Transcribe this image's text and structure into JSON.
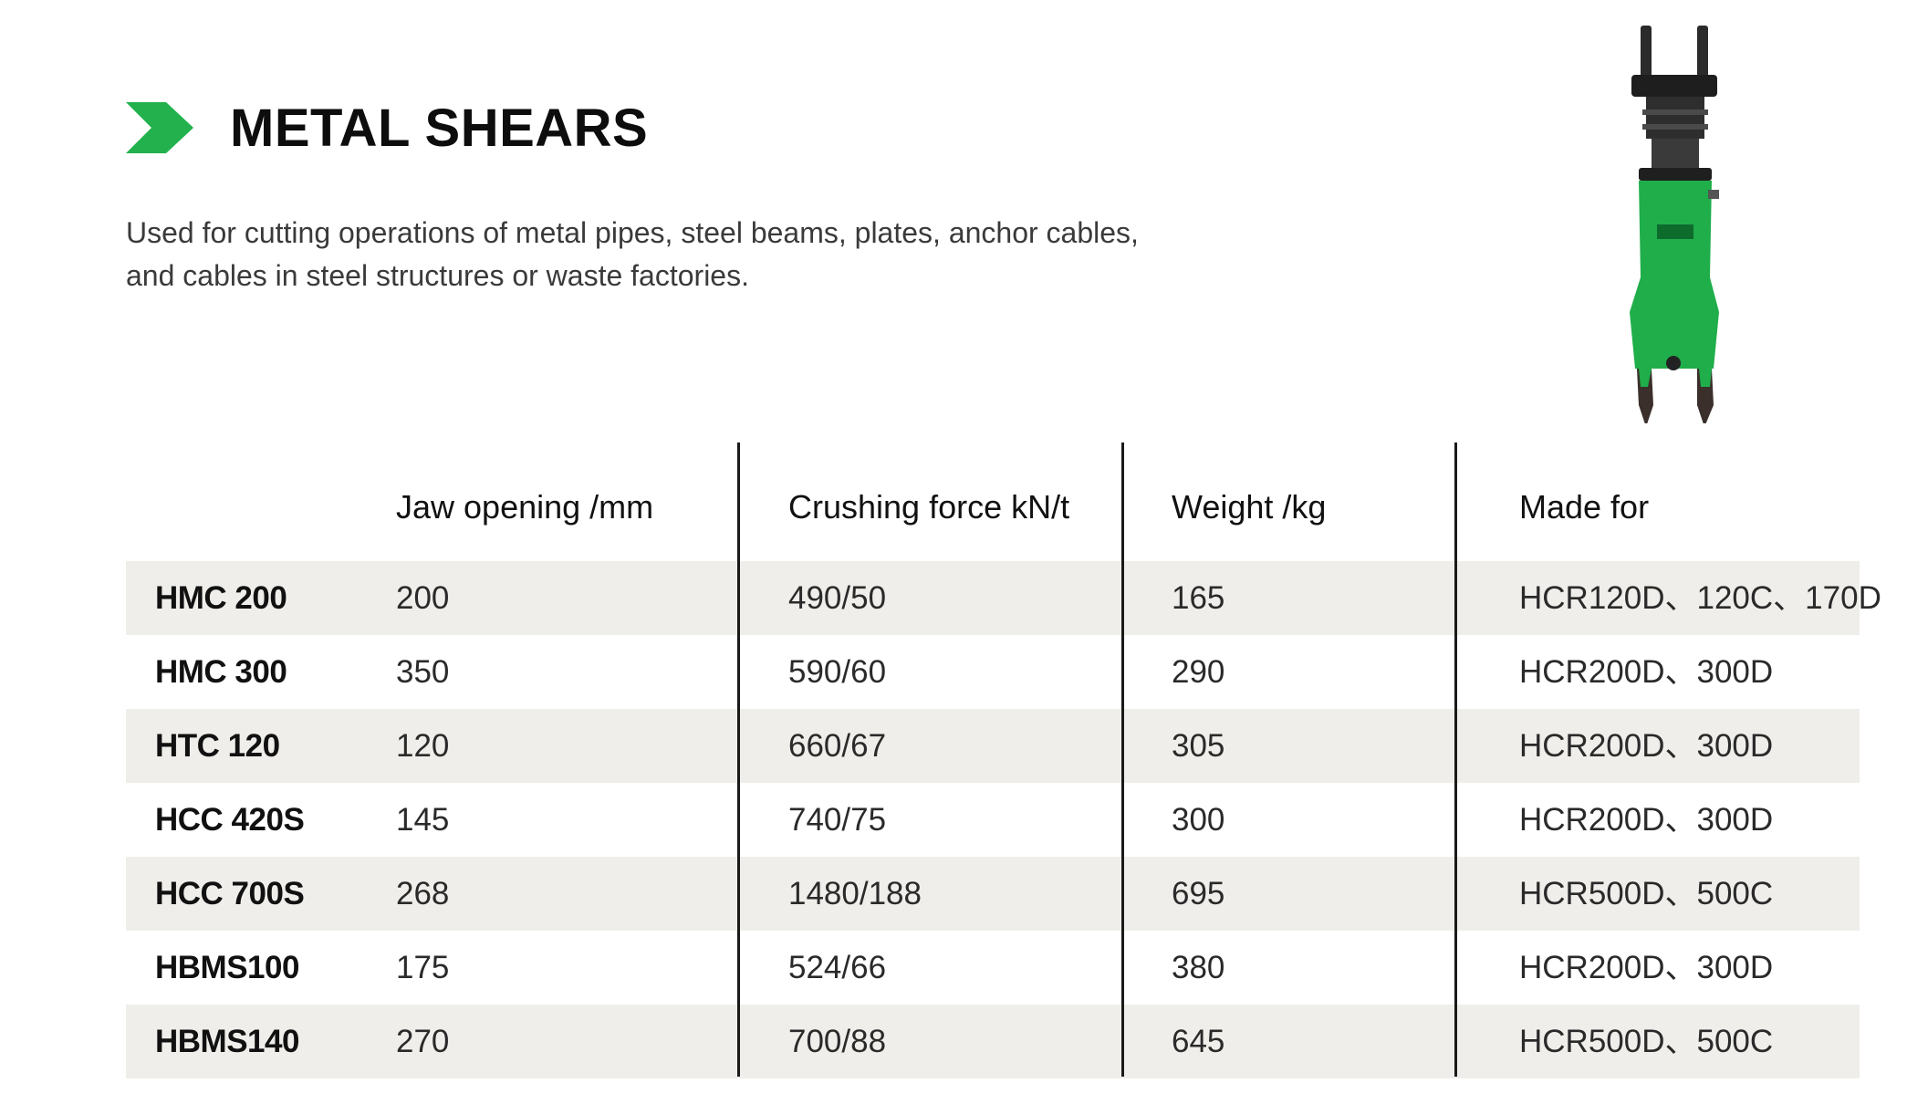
{
  "header": {
    "title": "METAL SHEARS",
    "description_line1": "Used for cutting operations of metal pipes, steel beams, plates, anchor cables,",
    "description_line2": "and cables in steel structures or waste factories."
  },
  "colors": {
    "accent_green": "#22b14c",
    "row_shade": "#efeeea",
    "divider": "#1a1a1a"
  },
  "icons": {
    "title_marker": "chevron-right-icon",
    "product": "metal-shear-attachment-illustration"
  },
  "table": {
    "columns": [
      "",
      "Jaw opening /mm",
      "Crushing force kN/t",
      "Weight /kg",
      "Made for"
    ],
    "rows": [
      {
        "model": "HMC 200",
        "jaw": "200",
        "force": "490/50",
        "weight": "165",
        "made_for": "HCR120D、120C、170D"
      },
      {
        "model": "HMC 300",
        "jaw": "350",
        "force": "590/60",
        "weight": "290",
        "made_for": "HCR200D、300D"
      },
      {
        "model": "HTC 120",
        "jaw": "120",
        "force": "660/67",
        "weight": "305",
        "made_for": "HCR200D、300D"
      },
      {
        "model": "HCC 420S",
        "jaw": "145",
        "force": "740/75",
        "weight": "300",
        "made_for": "HCR200D、300D"
      },
      {
        "model": "HCC 700S",
        "jaw": "268",
        "force": "1480/188",
        "weight": "695",
        "made_for": "HCR500D、500C"
      },
      {
        "model": "HBMS100",
        "jaw": "175",
        "force": "524/66",
        "weight": "380",
        "made_for": "HCR200D、300D"
      },
      {
        "model": "HBMS140",
        "jaw": "270",
        "force": "700/88",
        "weight": "645",
        "made_for": "HCR500D、500C"
      }
    ]
  }
}
